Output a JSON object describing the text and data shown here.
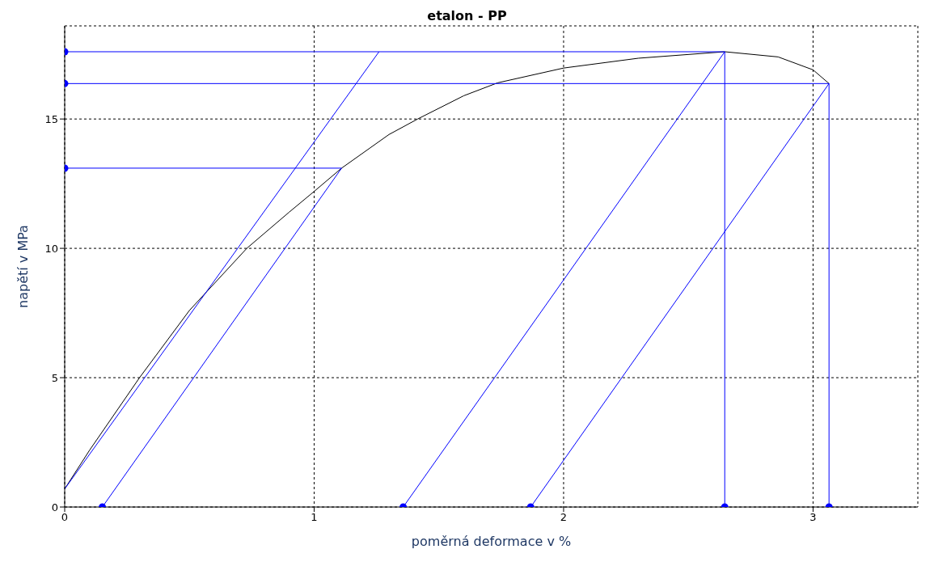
{
  "chart_data": {
    "type": "line",
    "title": "etalon - PP",
    "xlabel": "poměrná deformace v %",
    "ylabel": "napětí v MPa",
    "xlim": [
      0,
      3.42
    ],
    "ylim": [
      0,
      18.6
    ],
    "xticks": [
      0,
      1,
      2,
      3
    ],
    "yticks": [
      0,
      5,
      10,
      15
    ],
    "grid": true,
    "marker": "none",
    "line_style": "solid",
    "series": [
      {
        "color": "#000000",
        "x": [
          0,
          0.1,
          0.3,
          0.5,
          0.73,
          0.9,
          1.0,
          1.11,
          1.3,
          1.415,
          1.6,
          1.736,
          2.0,
          2.3,
          2.646,
          2.86,
          3.0,
          3.064
        ],
        "values": [
          0.7,
          2.2,
          5,
          7.6,
          10,
          11.4,
          12.2,
          13.1,
          14.4,
          15,
          15.9,
          16.4,
          16.97,
          17.35,
          17.6,
          17.4,
          16.9,
          16.37
        ]
      },
      {
        "color": "#0000ff",
        "x": [
          0,
          1.26
        ],
        "values": [
          0.7,
          17.6
        ]
      },
      {
        "color": "#0000ff",
        "x": [
          0.151,
          1.11
        ],
        "values": [
          0,
          13.1
        ]
      },
      {
        "color": "#0000ff",
        "x": [
          1.357,
          2.646
        ],
        "values": [
          0,
          17.6
        ]
      },
      {
        "color": "#0000ff",
        "x": [
          1.868,
          3.064
        ],
        "values": [
          0,
          16.37
        ]
      },
      {
        "color": "#0000ff",
        "x": [
          0,
          2.646
        ],
        "values": [
          17.6,
          17.6
        ]
      },
      {
        "color": "#0000ff",
        "x": [
          0,
          3.064
        ],
        "values": [
          16.37,
          16.37
        ]
      },
      {
        "color": "#0000ff",
        "x": [
          0,
          1.11
        ],
        "values": [
          13.1,
          13.1
        ]
      },
      {
        "color": "#0000ff",
        "x": [
          2.646,
          2.646
        ],
        "values": [
          0,
          17.6
        ]
      },
      {
        "color": "#0000ff",
        "x": [
          3.064,
          3.064
        ],
        "values": [
          0,
          16.37
        ]
      },
      {
        "type": "scatter",
        "marker": "circle",
        "color": "#0000ff",
        "x": [
          0,
          0,
          0,
          0.151,
          1.357,
          1.868,
          2.646,
          3.064
        ],
        "values": [
          17.6,
          16.37,
          13.1,
          0,
          0,
          0,
          0,
          0
        ]
      }
    ]
  }
}
